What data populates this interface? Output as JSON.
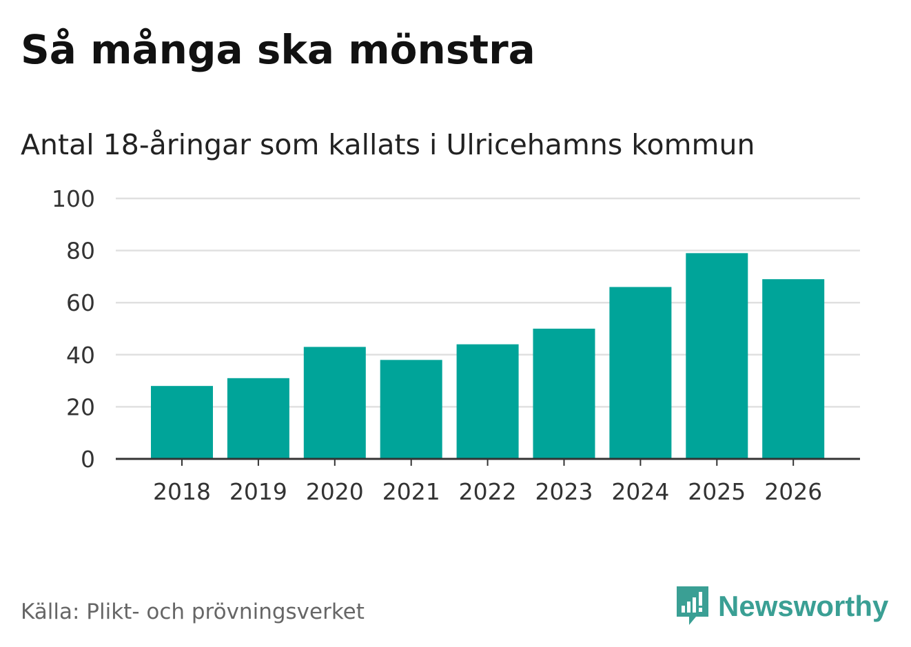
{
  "colors": {
    "bar": "#00a499",
    "grid": "#e0e0e0",
    "axis": "#333333",
    "brand": "#3a9f94"
  },
  "source": "Källa: Plikt- och prövningsverket",
  "brand": {
    "name": "Newsworthy",
    "icon": "newsworthy-logo-icon"
  },
  "chart_data": {
    "type": "bar",
    "title": "Så många ska mönstra",
    "subtitle": "Antal 18-åringar som kallats i Ulricehamns kommun",
    "xlabel": "",
    "ylabel": "",
    "categories": [
      "2018",
      "2019",
      "2020",
      "2021",
      "2022",
      "2023",
      "2024",
      "2025",
      "2026"
    ],
    "values": [
      28,
      31,
      43,
      38,
      44,
      50,
      66,
      79,
      69
    ],
    "ylim": [
      0,
      100
    ],
    "yticks": [
      "0",
      "20",
      "40",
      "60",
      "80",
      "100"
    ],
    "grid": true,
    "legend": "none"
  }
}
